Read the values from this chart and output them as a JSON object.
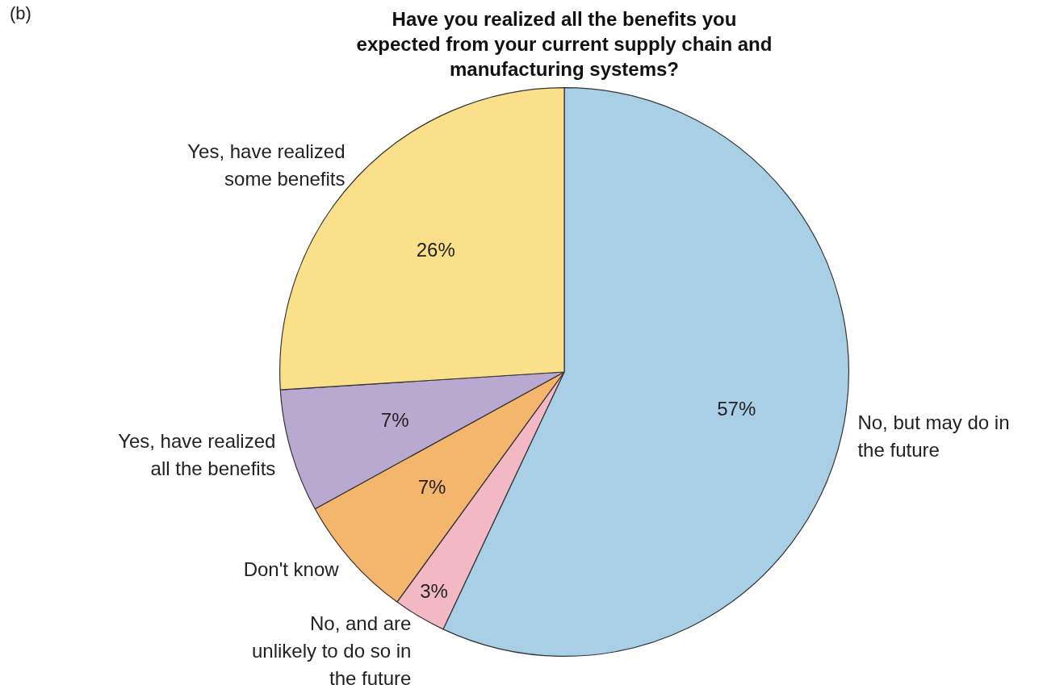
{
  "chart_data": {
    "type": "pie",
    "title": "Have you realized all the benefits you expected from your current supply chain and manufacturing systems?",
    "categories": [
      "No, but may do in the future",
      "No, and are unlikely to do so in the future",
      "Don't know",
      "Yes, have realized all the benefits",
      "Yes, have realized some benefits"
    ],
    "values": [
      57,
      3,
      7,
      7,
      26
    ],
    "colors": [
      "#a9cfe6",
      "#f2b8c4",
      "#f4b56c",
      "#b9a8d0",
      "#fbe08c"
    ],
    "value_labels": [
      "57%",
      "3%",
      "7%",
      "7%",
      "26%"
    ],
    "annotations": [
      "(b)"
    ],
    "legend": false
  }
}
